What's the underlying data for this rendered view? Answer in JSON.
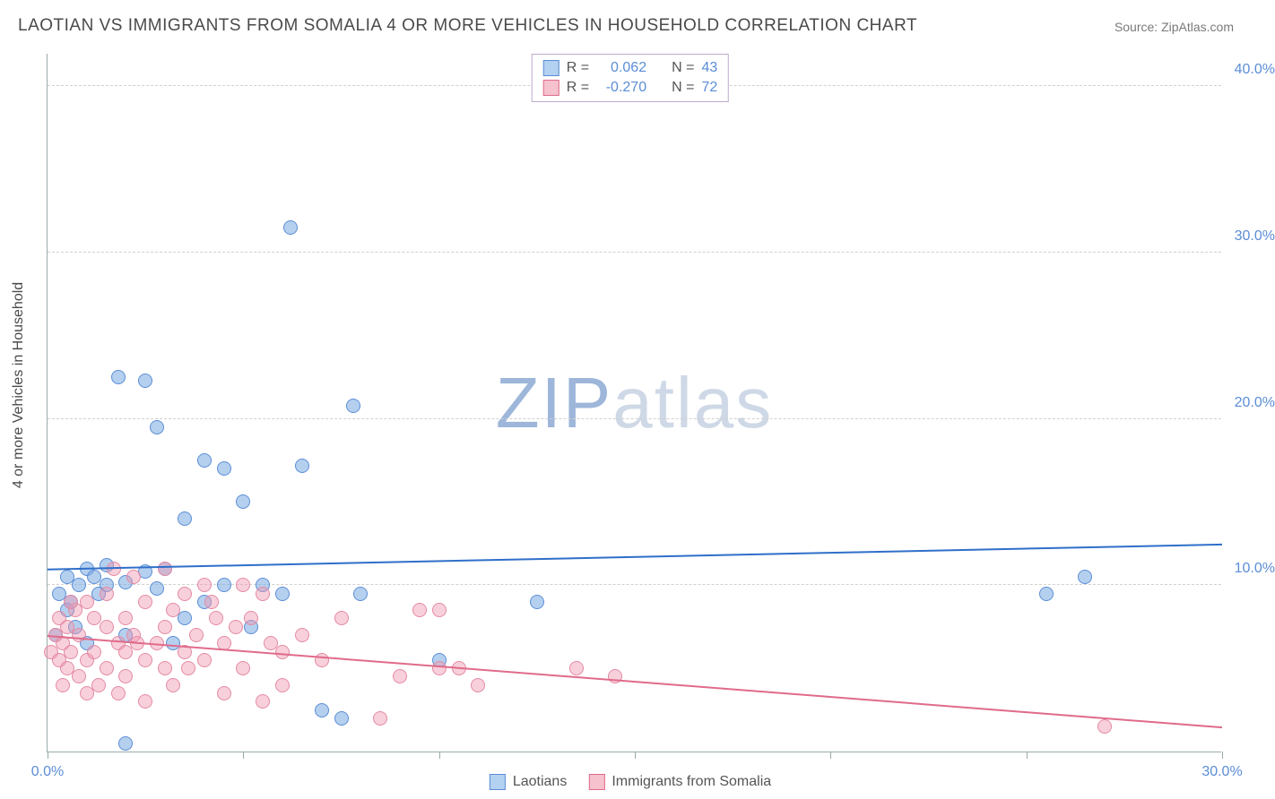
{
  "title": "LAOTIAN VS IMMIGRANTS FROM SOMALIA 4 OR MORE VEHICLES IN HOUSEHOLD CORRELATION CHART",
  "source": "Source: ZipAtlas.com",
  "y_axis_title": "4 or more Vehicles in Household",
  "watermark_a": "ZIP",
  "watermark_b": "atlas",
  "chart": {
    "type": "scatter",
    "xlim": [
      0,
      30
    ],
    "ylim": [
      0,
      42
    ],
    "y_ticks": [
      10,
      20,
      30,
      40
    ],
    "y_tick_labels": [
      "10.0%",
      "20.0%",
      "30.0%",
      "40.0%"
    ],
    "x_ticks": [
      0,
      5,
      10,
      15,
      20,
      25,
      30
    ],
    "x_tick_labels_shown": {
      "0": "0.0%",
      "30": "30.0%"
    },
    "grid_color": "#d0d0d0",
    "axis_color": "#9aa",
    "label_color": "#5b8dd6",
    "point_radius": 8,
    "series": [
      {
        "key": "laotians",
        "label": "Laotians",
        "fill": "rgba(120,170,225,0.55)",
        "stroke": "#5b8dd6",
        "R": "0.062",
        "N": "43",
        "trend": {
          "y_at_x0": 11.0,
          "y_at_xmax": 12.5,
          "color": "#2f6fc9",
          "width": 2
        },
        "points": [
          [
            0.2,
            7.0
          ],
          [
            0.3,
            9.5
          ],
          [
            0.5,
            10.5
          ],
          [
            0.5,
            8.5
          ],
          [
            0.6,
            9.0
          ],
          [
            0.8,
            10.0
          ],
          [
            1.0,
            11.0
          ],
          [
            1.0,
            6.5
          ],
          [
            1.2,
            10.5
          ],
          [
            1.3,
            9.5
          ],
          [
            1.5,
            11.2
          ],
          [
            1.5,
            10.0
          ],
          [
            1.8,
            22.5
          ],
          [
            2.0,
            10.2
          ],
          [
            2.0,
            7.0
          ],
          [
            2.0,
            0.5
          ],
          [
            2.5,
            22.3
          ],
          [
            2.5,
            10.8
          ],
          [
            2.8,
            19.5
          ],
          [
            2.8,
            9.8
          ],
          [
            3.0,
            11.0
          ],
          [
            3.2,
            6.5
          ],
          [
            3.5,
            14.0
          ],
          [
            3.5,
            8.0
          ],
          [
            4.0,
            17.5
          ],
          [
            4.0,
            9.0
          ],
          [
            4.5,
            17.0
          ],
          [
            4.5,
            10.0
          ],
          [
            5.0,
            15.0
          ],
          [
            5.2,
            7.5
          ],
          [
            5.5,
            10.0
          ],
          [
            6.0,
            9.5
          ],
          [
            6.2,
            31.5
          ],
          [
            6.5,
            17.2
          ],
          [
            7.0,
            2.5
          ],
          [
            7.5,
            2.0
          ],
          [
            7.8,
            20.8
          ],
          [
            8.0,
            9.5
          ],
          [
            10.0,
            5.5
          ],
          [
            12.5,
            9.0
          ],
          [
            25.5,
            9.5
          ],
          [
            26.5,
            10.5
          ],
          [
            0.7,
            7.5
          ]
        ]
      },
      {
        "key": "somalia",
        "label": "Immigrants from Somalia",
        "fill": "rgba(240,150,175,0.45)",
        "stroke": "#e48aa3",
        "R": "-0.270",
        "N": "72",
        "trend": {
          "y_at_x0": 7.0,
          "y_at_xmax": 1.5,
          "color": "#e06b8a",
          "width": 2
        },
        "points": [
          [
            0.1,
            6.0
          ],
          [
            0.2,
            7.0
          ],
          [
            0.3,
            5.5
          ],
          [
            0.3,
            8.0
          ],
          [
            0.4,
            6.5
          ],
          [
            0.5,
            7.5
          ],
          [
            0.5,
            5.0
          ],
          [
            0.6,
            6.0
          ],
          [
            0.7,
            8.5
          ],
          [
            0.8,
            4.5
          ],
          [
            0.8,
            7.0
          ],
          [
            1.0,
            9.0
          ],
          [
            1.0,
            5.5
          ],
          [
            1.0,
            3.5
          ],
          [
            1.2,
            8.0
          ],
          [
            1.2,
            6.0
          ],
          [
            1.3,
            4.0
          ],
          [
            1.5,
            7.5
          ],
          [
            1.5,
            5.0
          ],
          [
            1.5,
            9.5
          ],
          [
            1.8,
            6.5
          ],
          [
            1.8,
            3.5
          ],
          [
            2.0,
            8.0
          ],
          [
            2.0,
            6.0
          ],
          [
            2.0,
            4.5
          ],
          [
            2.2,
            10.5
          ],
          [
            2.2,
            7.0
          ],
          [
            2.5,
            5.5
          ],
          [
            2.5,
            9.0
          ],
          [
            2.5,
            3.0
          ],
          [
            2.8,
            6.5
          ],
          [
            3.0,
            11.0
          ],
          [
            3.0,
            7.5
          ],
          [
            3.0,
            5.0
          ],
          [
            3.2,
            8.5
          ],
          [
            3.2,
            4.0
          ],
          [
            3.5,
            9.5
          ],
          [
            3.5,
            6.0
          ],
          [
            3.8,
            7.0
          ],
          [
            4.0,
            10.0
          ],
          [
            4.0,
            5.5
          ],
          [
            4.2,
            9.0
          ],
          [
            4.5,
            6.5
          ],
          [
            4.5,
            3.5
          ],
          [
            4.8,
            7.5
          ],
          [
            5.0,
            10.0
          ],
          [
            5.0,
            5.0
          ],
          [
            5.2,
            8.0
          ],
          [
            5.5,
            9.5
          ],
          [
            5.5,
            3.0
          ],
          [
            6.0,
            6.0
          ],
          [
            6.0,
            4.0
          ],
          [
            6.5,
            7.0
          ],
          [
            7.0,
            5.5
          ],
          [
            7.5,
            8.0
          ],
          [
            8.5,
            2.0
          ],
          [
            9.0,
            4.5
          ],
          [
            9.5,
            8.5
          ],
          [
            10.0,
            8.5
          ],
          [
            10.0,
            5.0
          ],
          [
            10.5,
            5.0
          ],
          [
            11.0,
            4.0
          ],
          [
            13.5,
            5.0
          ],
          [
            14.5,
            4.5
          ],
          [
            27.0,
            1.5
          ],
          [
            0.4,
            4.0
          ],
          [
            0.6,
            9.0
          ],
          [
            1.7,
            11.0
          ],
          [
            2.3,
            6.5
          ],
          [
            3.6,
            5.0
          ],
          [
            4.3,
            8.0
          ],
          [
            5.7,
            6.5
          ]
        ]
      }
    ]
  },
  "legend_bottom": {
    "items": [
      {
        "swatch": "blue",
        "label": "Laotians"
      },
      {
        "swatch": "pink",
        "label": "Immigrants from Somalia"
      }
    ]
  },
  "legend_top": {
    "rows": [
      {
        "swatch": "blue",
        "r_label": "R =",
        "r_val": "0.062",
        "n_label": "N =",
        "n_val": "43"
      },
      {
        "swatch": "pink",
        "r_label": "R =",
        "r_val": "-0.270",
        "n_label": "N =",
        "n_val": "72"
      }
    ]
  }
}
